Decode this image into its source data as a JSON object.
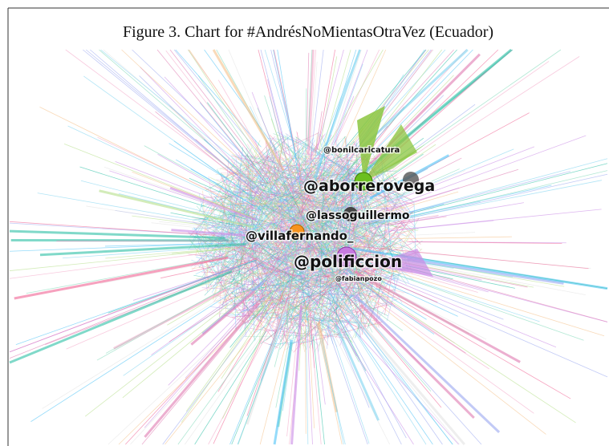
{
  "figure": {
    "title": "Figure 3. Chart for #AndrésNoMientasOtraVez (Ecuador)"
  },
  "nodes": [
    {
      "label": "@bonilcaricatura"
    },
    {
      "label": "@aborrerovega"
    },
    {
      "label": "@lassoguillermo"
    },
    {
      "label": "@villafernando_"
    },
    {
      "label": "@polificcion"
    },
    {
      "label": "@fabianpozo"
    }
  ]
}
